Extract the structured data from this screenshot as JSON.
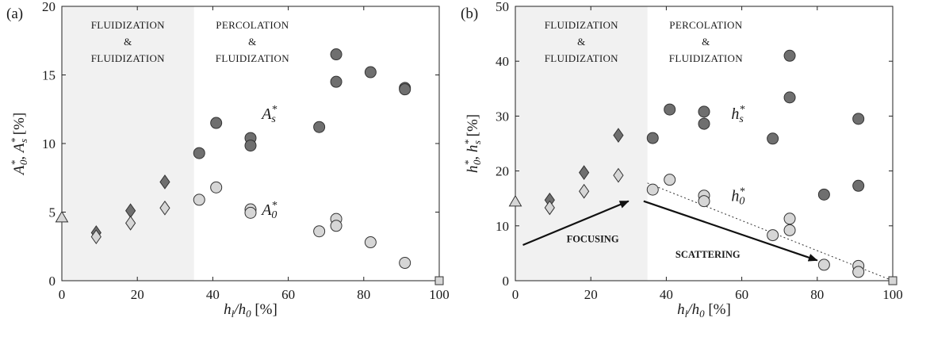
{
  "chart_data": [
    {
      "type": "scatter",
      "panel_label": "(a)",
      "xlabel": "h_l/h_0 [%]",
      "ylabel": "A*_0, A*_s [%]",
      "xlim": [
        0,
        100
      ],
      "ylim": [
        0,
        20
      ],
      "xticks": [
        0,
        20,
        40,
        60,
        80,
        100
      ],
      "yticks": [
        0,
        5,
        10,
        15,
        20
      ],
      "shaded_region": {
        "x": [
          0,
          35
        ],
        "color": "#f1f1f1"
      },
      "region_labels": [
        {
          "lines": [
            "FLUIDIZATION",
            "&",
            "FLUIDIZATION"
          ],
          "x": 17.5
        },
        {
          "lines": [
            "PERCOLATION",
            "&",
            "FLUIDIZATION"
          ],
          "x": 50.5
        }
      ],
      "curve_labels": [
        {
          "base": "A",
          "sup": "*",
          "sub": "s",
          "x": 55,
          "y": 11.8
        },
        {
          "base": "A",
          "sup": "*",
          "sub": "0",
          "x": 55,
          "y": 4.8
        }
      ],
      "series": [
        {
          "marker": "circle",
          "fill": "#6f6f6f",
          "values": [
            [
              36.4,
              9.3
            ],
            [
              40.9,
              11.5
            ],
            [
              50,
              10.4
            ],
            [
              50,
              9.85
            ],
            [
              68.2,
              11.2
            ],
            [
              72.7,
              16.5
            ],
            [
              72.7,
              14.5
            ],
            [
              81.8,
              15.2
            ],
            [
              90.9,
              14.05
            ],
            [
              90.9,
              13.95
            ]
          ]
        },
        {
          "marker": "circle",
          "fill": "#d6d6d6",
          "values": [
            [
              36.4,
              5.9
            ],
            [
              40.9,
              6.8
            ],
            [
              50,
              5.2
            ],
            [
              50,
              4.95
            ],
            [
              68.2,
              3.6
            ],
            [
              72.7,
              4.5
            ],
            [
              72.7,
              4.0
            ],
            [
              81.8,
              2.8
            ],
            [
              90.9,
              1.3
            ]
          ]
        },
        {
          "marker": "diamond",
          "fill": "#6f6f6f",
          "values": [
            [
              9.1,
              3.5
            ],
            [
              18.2,
              5.1
            ],
            [
              27.3,
              7.2
            ]
          ]
        },
        {
          "marker": "diamond",
          "fill": "#d6d6d6",
          "values": [
            [
              9.1,
              3.2
            ],
            [
              18.2,
              4.2
            ],
            [
              27.3,
              5.3
            ]
          ]
        },
        {
          "marker": "triangle",
          "fill": "#d6d6d6",
          "values": [
            [
              0,
              4.6
            ]
          ]
        },
        {
          "marker": "square",
          "fill": "#d6d6d6",
          "values": [
            [
              100,
              0
            ]
          ]
        }
      ]
    },
    {
      "type": "scatter",
      "panel_label": "(b)",
      "xlabel": "h_l/h_0 [%]",
      "ylabel": "h*_0, h*_s [%]",
      "xlim": [
        0,
        100
      ],
      "ylim": [
        0,
        50
      ],
      "xticks": [
        0,
        20,
        40,
        60,
        80,
        100
      ],
      "yticks": [
        0,
        10,
        20,
        30,
        40,
        50
      ],
      "shaded_region": {
        "x": [
          0,
          35
        ],
        "color": "#f1f1f1"
      },
      "region_labels": [
        {
          "lines": [
            "FLUIDIZATION",
            "&",
            "FLUIDIZATION"
          ],
          "x": 17.5
        },
        {
          "lines": [
            "PERCOLATION",
            "&",
            "FLUIDIZATION"
          ],
          "x": 50.5
        }
      ],
      "curve_labels": [
        {
          "base": "h",
          "sup": "*",
          "sub": "s",
          "x": 59,
          "y": 29.5
        },
        {
          "base": "h",
          "sup": "*",
          "sub": "0",
          "x": 59,
          "y": 14.5
        }
      ],
      "annotations": [
        {
          "text": "FOCUSING",
          "x": 20.5,
          "y": 7,
          "arrow_from": [
            2,
            6.5
          ],
          "arrow_to": [
            30,
            14.5
          ]
        },
        {
          "text": "SCATTERING",
          "x": 51,
          "y": 4.2,
          "arrow_from": [
            34,
            14.5
          ],
          "arrow_to": [
            80,
            3.7
          ]
        }
      ],
      "reference_line": {
        "style": "dotted",
        "from": [
          35,
          17.8
        ],
        "to": [
          100,
          0
        ]
      },
      "series": [
        {
          "marker": "circle",
          "fill": "#6f6f6f",
          "values": [
            [
              36.4,
              26
            ],
            [
              40.9,
              31.2
            ],
            [
              50,
              30.8
            ],
            [
              50,
              28.6
            ],
            [
              68.2,
              25.9
            ],
            [
              72.7,
              41
            ],
            [
              72.7,
              33.4
            ],
            [
              81.8,
              15.7
            ],
            [
              90.9,
              29.5
            ],
            [
              90.9,
              17.3
            ]
          ]
        },
        {
          "marker": "circle",
          "fill": "#d6d6d6",
          "values": [
            [
              36.4,
              16.6
            ],
            [
              40.9,
              18.4
            ],
            [
              50,
              15.5
            ],
            [
              50,
              14.5
            ],
            [
              68.2,
              8.3
            ],
            [
              72.7,
              11.3
            ],
            [
              72.7,
              9.2
            ],
            [
              81.8,
              2.9
            ],
            [
              90.9,
              2.7
            ],
            [
              90.9,
              1.6
            ]
          ]
        },
        {
          "marker": "diamond",
          "fill": "#6f6f6f",
          "values": [
            [
              9.1,
              14.7
            ],
            [
              18.2,
              19.7
            ],
            [
              27.3,
              26.5
            ]
          ]
        },
        {
          "marker": "diamond",
          "fill": "#d6d6d6",
          "values": [
            [
              9.1,
              13.3
            ],
            [
              18.2,
              16.3
            ],
            [
              27.3,
              19.2
            ]
          ]
        },
        {
          "marker": "triangle",
          "fill": "#d6d6d6",
          "values": [
            [
              0,
              14.4
            ]
          ]
        },
        {
          "marker": "square",
          "fill": "#d6d6d6",
          "values": [
            [
              100,
              0
            ]
          ]
        }
      ]
    }
  ]
}
